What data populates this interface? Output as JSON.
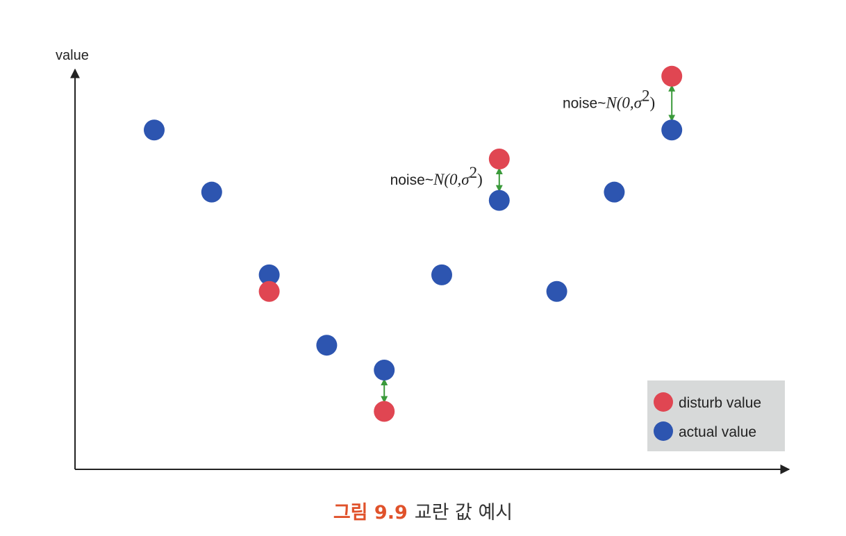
{
  "chart_data": {
    "type": "scatter",
    "ylabel": "value",
    "ylim": [
      0,
      1
    ],
    "series": [
      {
        "name": "actual value",
        "color": "#2d55b0",
        "points": [
          {
            "x": 1,
            "y": 0.82
          },
          {
            "x": 2,
            "y": 0.67
          },
          {
            "x": 3,
            "y": 0.47
          },
          {
            "x": 4,
            "y": 0.3
          },
          {
            "x": 5,
            "y": 0.24
          },
          {
            "x": 6,
            "y": 0.47
          },
          {
            "x": 7,
            "y": 0.65
          },
          {
            "x": 8,
            "y": 0.43
          },
          {
            "x": 9,
            "y": 0.67
          },
          {
            "x": 10,
            "y": 0.82
          }
        ]
      },
      {
        "name": "disturb value",
        "color": "#e04652",
        "points": [
          {
            "x": 3,
            "y": 0.43
          },
          {
            "x": 5,
            "y": 0.14
          },
          {
            "x": 7,
            "y": 0.75
          },
          {
            "x": 10,
            "y": 0.95
          }
        ]
      }
    ],
    "noise_links": [
      {
        "x": 5,
        "from": 0.24,
        "to": 0.14
      },
      {
        "x": 7,
        "from": 0.65,
        "to": 0.75
      },
      {
        "x": 10,
        "from": 0.82,
        "to": 0.95
      }
    ],
    "annotations": [
      {
        "prefix": "noise~",
        "math": "N(0,σ",
        "exp": "2",
        "close": ")",
        "x": 7
      },
      {
        "prefix": "noise~",
        "math": "N(0,σ",
        "exp": "2",
        "close": ")",
        "x": 10
      }
    ],
    "legend": {
      "position": "bottom-right",
      "items": [
        "disturb value",
        "actual value"
      ]
    },
    "link_color": "#3a9a3a",
    "grid": false
  },
  "caption": {
    "figure_number": "그림 9.9",
    "text": "교란 값 예시"
  }
}
